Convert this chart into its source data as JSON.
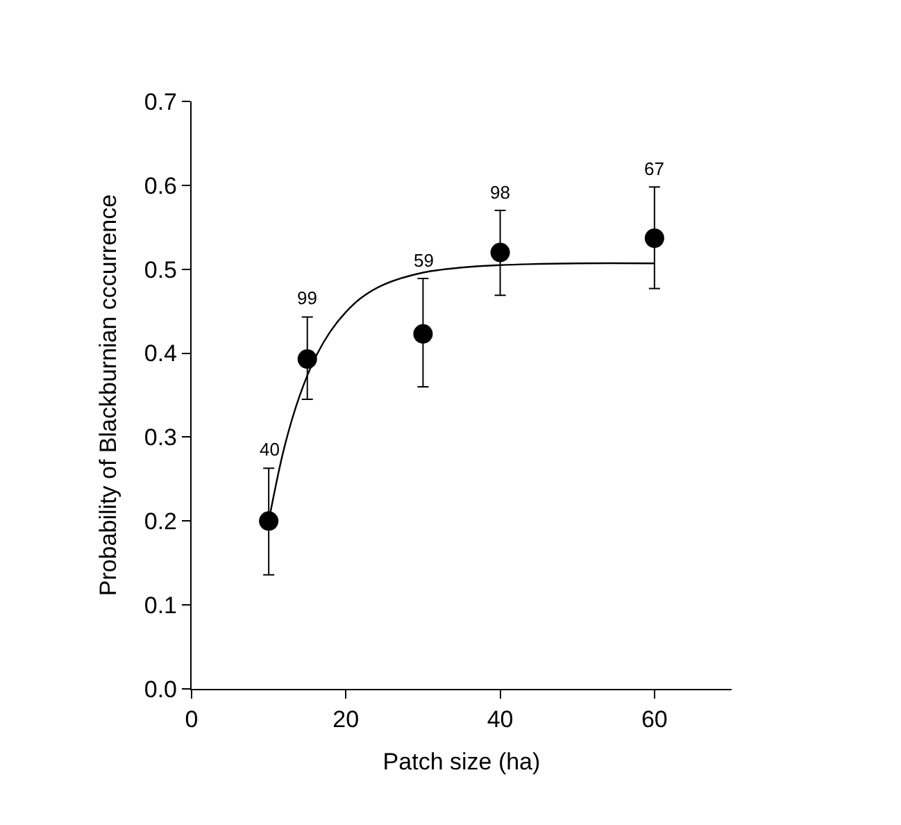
{
  "chart_data": {
    "type": "scatter",
    "xlabel": "Patch size (ha)",
    "ylabel": "Probability of Blackburnian cccurrence",
    "xlim": [
      0,
      70
    ],
    "xticks": [
      0,
      20,
      40,
      60
    ],
    "ylim": [
      0,
      0.7
    ],
    "yticks": [
      {
        "value": 0,
        "label": "0.0"
      },
      0.1,
      0.2,
      0.3,
      0.4,
      0.5,
      0.6,
      0.7
    ],
    "series": [
      {
        "marker": "circle",
        "color": "#000000",
        "x": [
          10,
          15,
          30,
          40,
          60
        ],
        "values": [
          0.2,
          0.393,
          0.423,
          0.52,
          0.537
        ],
        "errors": [
          [
            0.136,
            0.263
          ],
          [
            0.345,
            0.443
          ],
          [
            0.36,
            0.489
          ],
          [
            0.469,
            0.57
          ],
          [
            0.477,
            0.598
          ]
        ]
      },
      {
        "type": "line",
        "marker": "none",
        "color": "#000000",
        "x": [
          10,
          12,
          14,
          16,
          18,
          20,
          22,
          25,
          30,
          35,
          40,
          50,
          60
        ],
        "values": [
          0.2,
          0.287,
          0.349,
          0.394,
          0.426,
          0.449,
          0.466,
          0.482,
          0.496,
          0.502,
          0.505,
          0.507,
          0.507
        ]
      }
    ],
    "annotations": [
      {
        "text": "40",
        "x": 10,
        "y": 0.263
      },
      {
        "text": "99",
        "x": 15,
        "y": 0.443
      },
      {
        "text": "59",
        "x": 30,
        "y": 0.489
      },
      {
        "text": "98",
        "x": 40,
        "y": 0.57
      },
      {
        "text": "67",
        "x": 60,
        "y": 0.598
      }
    ]
  }
}
